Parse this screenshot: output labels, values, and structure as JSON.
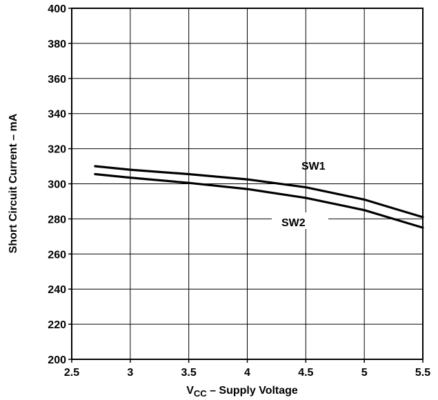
{
  "chart_data": {
    "type": "line",
    "title": "",
    "xlabel": {
      "main": "V",
      "sub": "CC",
      "rest": " – Supply Voltage"
    },
    "ylabel": "Short Circuit Current – mA",
    "xlim": [
      2.5,
      5.5
    ],
    "ylim": [
      200,
      400
    ],
    "xticks": [
      "2.5",
      "3",
      "3.5",
      "4",
      "4.5",
      "5",
      "5.5"
    ],
    "yticks": [
      "200",
      "220",
      "240",
      "260",
      "280",
      "300",
      "320",
      "340",
      "360",
      "380",
      "400"
    ],
    "grid": true,
    "series": [
      {
        "name": "SW1",
        "x": [
          2.7,
          3.0,
          3.5,
          4.0,
          4.5,
          5.0,
          5.2,
          5.5
        ],
        "y": [
          310,
          308,
          305.5,
          302.5,
          298,
          291,
          287,
          281
        ]
      },
      {
        "name": "SW2",
        "x": [
          2.7,
          3.0,
          3.5,
          4.0,
          4.5,
          5.0,
          5.2,
          5.5
        ],
        "y": [
          305.5,
          303.5,
          300.5,
          297,
          292,
          285,
          281,
          275
        ]
      }
    ],
    "annotations": [
      {
        "text": "SW1",
        "series": "SW1"
      },
      {
        "text": "SW2",
        "series": "SW2"
      }
    ]
  }
}
